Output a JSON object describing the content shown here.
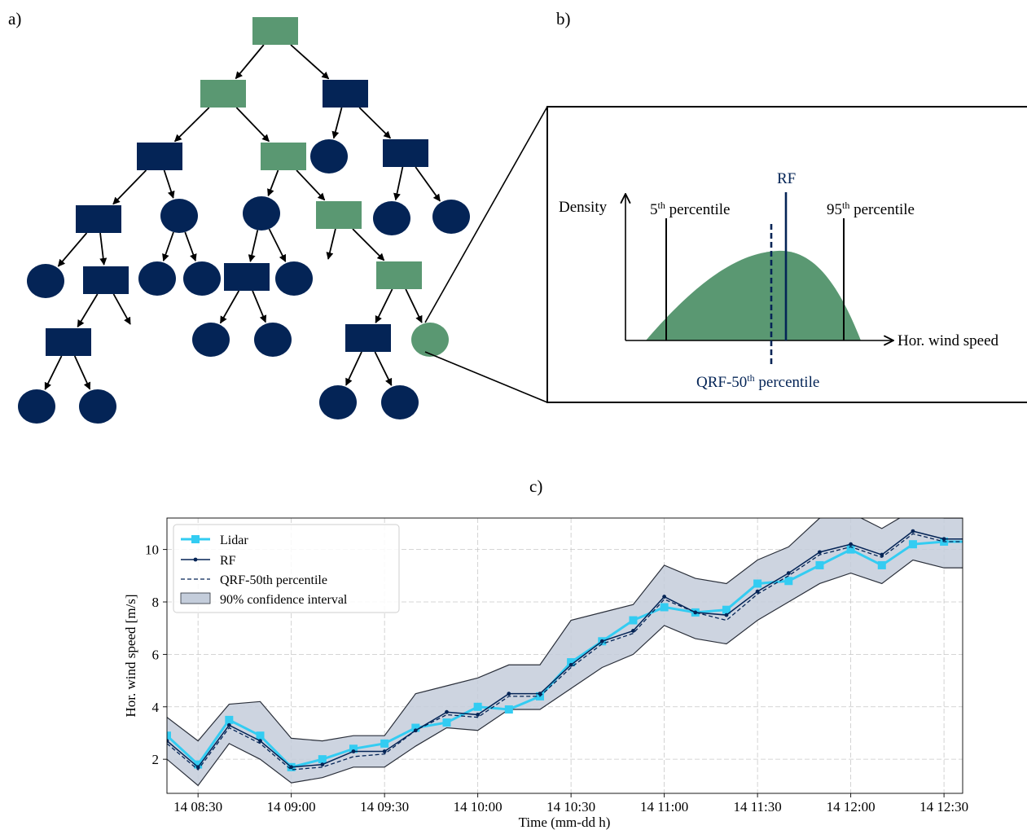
{
  "panels": {
    "a": {
      "label": "a)"
    },
    "b": {
      "label": "b)",
      "y_label": "Density",
      "x_label": "Hor. wind speed",
      "p5_base": "5",
      "p5_sup": "th",
      "p5_rest": " percentile",
      "p95_base": "95",
      "p95_sup": "th",
      "p95_rest": " percentile",
      "rf_label": "RF",
      "qrf_base": "QRF-50",
      "qrf_sup": "th",
      "qrf_rest": " percentile"
    },
    "c": {
      "label": "c)"
    }
  },
  "colors": {
    "navy": "#042456",
    "green": "#5a9872",
    "cyan": "#33ccf2",
    "band": "#c4cddb",
    "band_edge": "#2a2f3a"
  },
  "tree": {
    "nodes": [
      {
        "id": "n1",
        "shape": "rect",
        "color": "green"
      },
      {
        "id": "n2",
        "shape": "rect",
        "color": "green"
      },
      {
        "id": "n3",
        "shape": "rect",
        "color": "navy"
      },
      {
        "id": "n4",
        "shape": "rect",
        "color": "navy"
      },
      {
        "id": "n5",
        "shape": "rect",
        "color": "green"
      },
      {
        "id": "n6",
        "shape": "ellipse",
        "color": "navy"
      },
      {
        "id": "n7",
        "shape": "rect",
        "color": "navy"
      },
      {
        "id": "n8",
        "shape": "rect",
        "color": "navy"
      },
      {
        "id": "n9",
        "shape": "ellipse",
        "color": "navy"
      },
      {
        "id": "n10",
        "shape": "ellipse",
        "color": "navy"
      },
      {
        "id": "n11",
        "shape": "rect",
        "color": "green"
      },
      {
        "id": "n12",
        "shape": "ellipse",
        "color": "navy"
      },
      {
        "id": "n13",
        "shape": "ellipse",
        "color": "navy"
      },
      {
        "id": "n14",
        "shape": "ellipse",
        "color": "navy"
      },
      {
        "id": "n15",
        "shape": "rect",
        "color": "navy"
      },
      {
        "id": "n16",
        "shape": "ellipse",
        "color": "navy"
      },
      {
        "id": "n17",
        "shape": "ellipse",
        "color": "navy"
      },
      {
        "id": "n18",
        "shape": "rect",
        "color": "navy"
      },
      {
        "id": "n19",
        "shape": "ellipse",
        "color": "navy"
      },
      {
        "id": "n20",
        "shape": "rect",
        "color": "green"
      },
      {
        "id": "n21",
        "shape": "rect",
        "color": "navy"
      },
      {
        "id": "n22",
        "shape": "ellipse",
        "color": "navy"
      },
      {
        "id": "n23",
        "shape": "ellipse",
        "color": "navy"
      },
      {
        "id": "n24",
        "shape": "rect",
        "color": "navy"
      },
      {
        "id": "n25",
        "shape": "ellipse",
        "color": "green"
      },
      {
        "id": "n26",
        "shape": "ellipse",
        "color": "navy"
      },
      {
        "id": "n27",
        "shape": "ellipse",
        "color": "navy"
      },
      {
        "id": "n28",
        "shape": "ellipse",
        "color": "navy"
      },
      {
        "id": "n29",
        "shape": "ellipse",
        "color": "navy"
      }
    ],
    "edges": [
      [
        "n1",
        "n2"
      ],
      [
        "n1",
        "n3"
      ],
      [
        "n2",
        "n4"
      ],
      [
        "n2",
        "n5"
      ],
      [
        "n3",
        "n6"
      ],
      [
        "n3",
        "n7"
      ],
      [
        "n4",
        "n8"
      ],
      [
        "n4",
        "n9"
      ],
      [
        "n5",
        "n10"
      ],
      [
        "n5",
        "n11"
      ],
      [
        "n7",
        "n12"
      ],
      [
        "n7",
        "n13"
      ],
      [
        "n8",
        "n14"
      ],
      [
        "n8",
        "n15"
      ],
      [
        "n9",
        "n16"
      ],
      [
        "n9",
        "n17"
      ],
      [
        "n10",
        "n18"
      ],
      [
        "n10",
        "n19"
      ],
      [
        "n11",
        "x1"
      ],
      [
        "n11",
        "n20"
      ],
      [
        "n15",
        "n21"
      ],
      [
        "n15",
        "x2"
      ],
      [
        "n18",
        "n22"
      ],
      [
        "n18",
        "n23"
      ],
      [
        "n20",
        "n24"
      ],
      [
        "n20",
        "n25"
      ],
      [
        "n21",
        "n26"
      ],
      [
        "n21",
        "n27"
      ],
      [
        "n24",
        "n28"
      ],
      [
        "n24",
        "n29"
      ]
    ]
  },
  "chart_data": {
    "type": "line",
    "title": "",
    "xlabel": "Time (mm-dd h)",
    "ylabel": "Hor. wind speed [m/s]",
    "x": [
      "14 08:20",
      "14 08:30",
      "14 08:40",
      "14 08:50",
      "14 09:00",
      "14 09:10",
      "14 09:20",
      "14 09:30",
      "14 09:40",
      "14 09:50",
      "14 10:00",
      "14 10:10",
      "14 10:20",
      "14 10:30",
      "14 10:40",
      "14 10:50",
      "14 11:00",
      "14 11:10",
      "14 11:20",
      "14 11:30",
      "14 11:40",
      "14 11:50",
      "14 12:00",
      "14 12:10",
      "14 12:20",
      "14 12:30",
      "14 12:40"
    ],
    "xticks": [
      "14 08:30",
      "14 09:00",
      "14 09:30",
      "14 10:00",
      "14 10:30",
      "14 11:00",
      "14 11:30",
      "14 12:00",
      "14 12:30"
    ],
    "xlim": [
      "14 08:20",
      "14 12:36"
    ],
    "yticks": [
      2,
      4,
      6,
      8,
      10
    ],
    "ylim": [
      0.7,
      11.2
    ],
    "grid": true,
    "legend_loc": "upper-left",
    "series": [
      {
        "name": "Lidar",
        "values": [
          2.9,
          1.8,
          3.5,
          2.9,
          1.7,
          2.0,
          2.4,
          2.6,
          3.2,
          3.4,
          4.0,
          3.9,
          4.4,
          5.7,
          6.5,
          7.3,
          7.8,
          7.6,
          7.7,
          8.7,
          8.8,
          9.4,
          10.0,
          9.4,
          10.2,
          10.3,
          10.3
        ]
      },
      {
        "name": "RF",
        "values": [
          2.7,
          1.7,
          3.3,
          2.7,
          1.7,
          1.8,
          2.3,
          2.3,
          3.1,
          3.8,
          3.7,
          4.5,
          4.5,
          5.6,
          6.5,
          6.9,
          8.2,
          7.6,
          7.5,
          8.4,
          9.1,
          9.9,
          10.2,
          9.8,
          10.7,
          10.4,
          10.4
        ]
      },
      {
        "name": "QRF-50th percentile",
        "values": [
          2.6,
          1.6,
          3.2,
          2.6,
          1.6,
          1.7,
          2.1,
          2.2,
          3.1,
          3.7,
          3.6,
          4.4,
          4.4,
          5.5,
          6.4,
          6.8,
          8.1,
          7.6,
          7.3,
          8.3,
          9.0,
          9.8,
          10.1,
          9.7,
          10.6,
          10.3,
          10.3
        ]
      },
      {
        "name": "90% confidence interval",
        "lower": [
          2.0,
          1.0,
          2.6,
          2.0,
          1.1,
          1.3,
          1.7,
          1.7,
          2.5,
          3.2,
          3.1,
          3.9,
          3.9,
          4.7,
          5.5,
          6.0,
          7.1,
          6.6,
          6.4,
          7.3,
          8.0,
          8.7,
          9.1,
          8.7,
          9.6,
          9.3,
          9.3
        ],
        "upper": [
          3.6,
          2.7,
          4.1,
          4.2,
          2.8,
          2.7,
          2.9,
          2.9,
          4.5,
          4.8,
          5.1,
          5.6,
          5.6,
          7.3,
          7.6,
          7.9,
          9.4,
          8.9,
          8.7,
          9.6,
          10.1,
          11.2,
          11.4,
          10.8,
          11.5,
          11.2,
          11.2
        ]
      }
    ]
  }
}
